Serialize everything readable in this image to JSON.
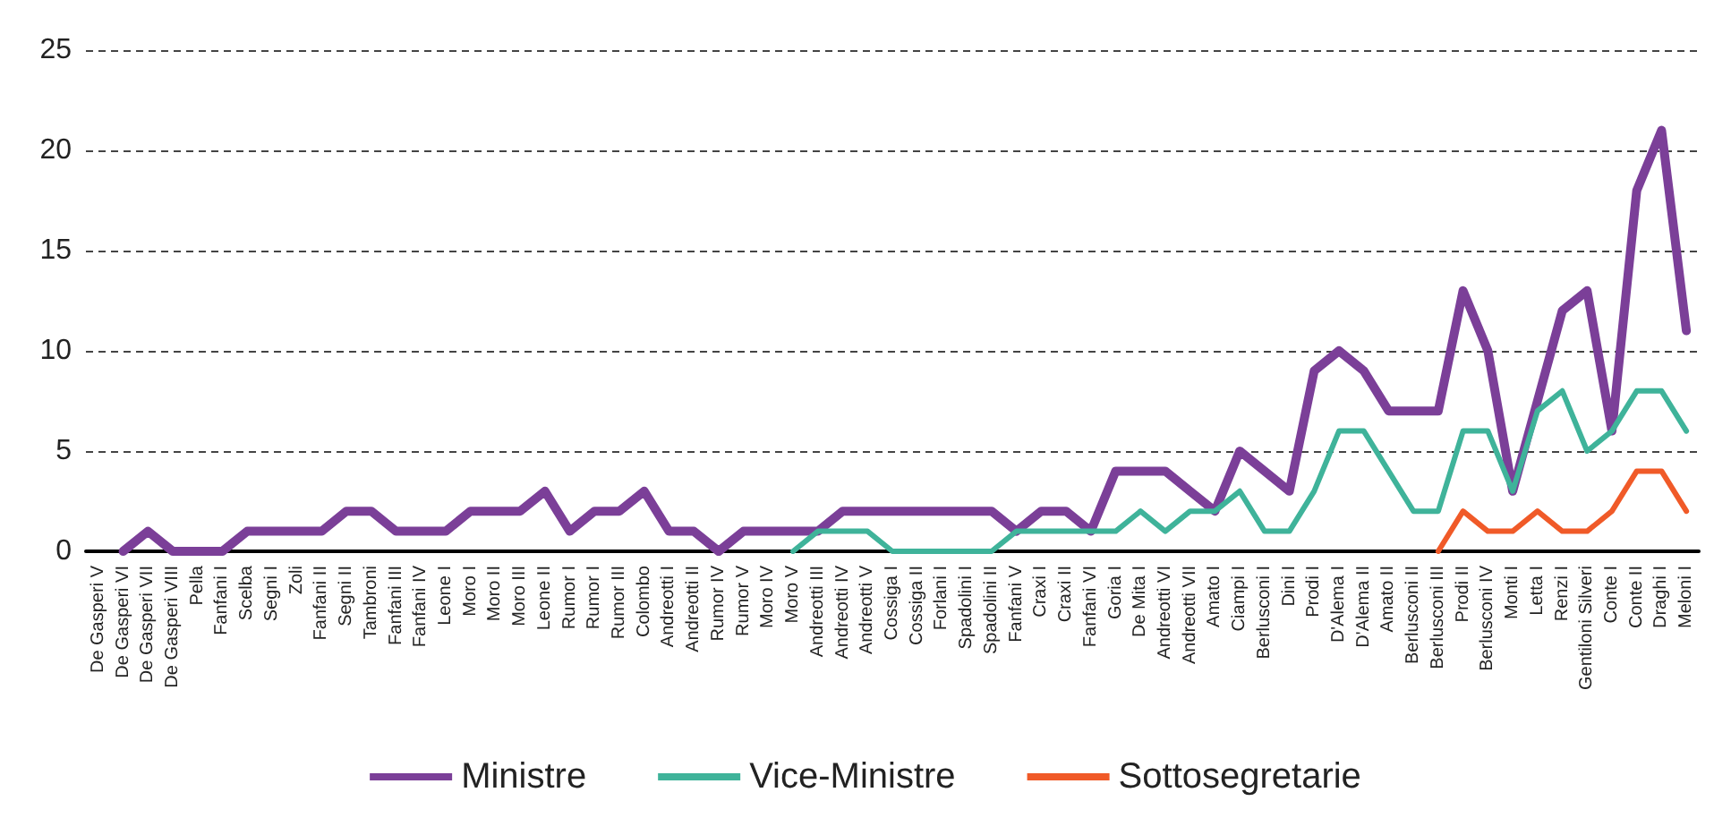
{
  "chart_data": {
    "type": "line",
    "categories": [
      "De Gasperi V",
      "De Gasperi VI",
      "De Gasperi VII",
      "De Gasperi VIII",
      "Pella",
      "Fanfani I",
      "Scelba",
      "Segni I",
      "Zoli",
      "Fanfani II",
      "Segni II",
      "Tambroni",
      "Fanfani III",
      "Fanfani IV",
      "Leone I",
      "Moro I",
      "Moro II",
      "Moro III",
      "Leone II",
      "Rumor I",
      "Rumor I",
      "Rumor III",
      "Colombo",
      "Andreotti I",
      "Andreotti II",
      "Rumor IV",
      "Rumor V",
      "Moro IV",
      "Moro V",
      "Andreotti III",
      "Andreotti IV",
      "Andreotti V",
      "Cossiga I",
      "Cossiga II",
      "Forlani I",
      "Spadolini I",
      "Spadolini II",
      "Fanfani V",
      "Craxi I",
      "Craxi II",
      "Fanfani VI",
      "Goria I",
      "De Mita I",
      "Andreotti VI",
      "Andreotti VII",
      "Amato I",
      "Ciampi I",
      "Berlusconi I",
      "Dini I",
      "Prodi I",
      "D'Alema I",
      "D'Alema II",
      "Amato II",
      "Berlusconi II",
      "Berlusconi III",
      "Prodi II",
      "Berlusconi IV",
      "Monti I",
      "Letta I",
      "Renzi I",
      "Gentiloni Silveri",
      "Conte I",
      "Conte II",
      "Draghi I",
      "Meloni I"
    ],
    "series": [
      {
        "name": "Ministre",
        "color": "#7b3f98",
        "values": [
          null,
          0,
          1,
          0,
          0,
          0,
          1,
          1,
          1,
          1,
          2,
          2,
          1,
          1,
          1,
          2,
          2,
          2,
          3,
          1,
          2,
          2,
          3,
          1,
          1,
          0,
          1,
          1,
          1,
          1,
          2,
          2,
          2,
          2,
          2,
          2,
          2,
          1,
          2,
          2,
          1,
          4,
          4,
          4,
          3,
          2,
          5,
          4,
          3,
          9,
          10,
          9,
          7,
          7,
          7,
          13,
          10,
          3,
          7.5,
          12,
          13,
          6,
          18,
          21,
          11
        ]
      },
      {
        "name": "Vice-Ministre",
        "color": "#3fb39a",
        "values": [
          null,
          null,
          null,
          null,
          null,
          null,
          null,
          null,
          null,
          null,
          null,
          null,
          null,
          null,
          null,
          null,
          null,
          null,
          null,
          null,
          null,
          null,
          null,
          null,
          null,
          null,
          null,
          null,
          0,
          1,
          1,
          1,
          0,
          0,
          0,
          0,
          0,
          1,
          1,
          1,
          1,
          1,
          2,
          1,
          2,
          2,
          3,
          1,
          1,
          3,
          6,
          6,
          4,
          2,
          2,
          6,
          6,
          3,
          7,
          8,
          5,
          6,
          8,
          8,
          6
        ]
      },
      {
        "name": "Sottosegretarie",
        "color": "#f05a28",
        "values": [
          null,
          null,
          null,
          null,
          null,
          null,
          null,
          null,
          null,
          null,
          null,
          null,
          null,
          null,
          null,
          null,
          null,
          null,
          null,
          null,
          null,
          null,
          null,
          null,
          null,
          null,
          null,
          null,
          null,
          null,
          null,
          null,
          null,
          null,
          null,
          null,
          null,
          null,
          null,
          null,
          null,
          null,
          null,
          null,
          null,
          null,
          null,
          null,
          null,
          null,
          null,
          null,
          null,
          null,
          0,
          2,
          1,
          1,
          2,
          1,
          1,
          2,
          4,
          4,
          2
        ]
      }
    ],
    "ylim": [
      0,
      25
    ],
    "yticks": [
      0,
      5,
      10,
      15,
      20,
      25
    ],
    "grid": "y",
    "legend": "bottom",
    "line_style": "solid",
    "marker": "none"
  }
}
